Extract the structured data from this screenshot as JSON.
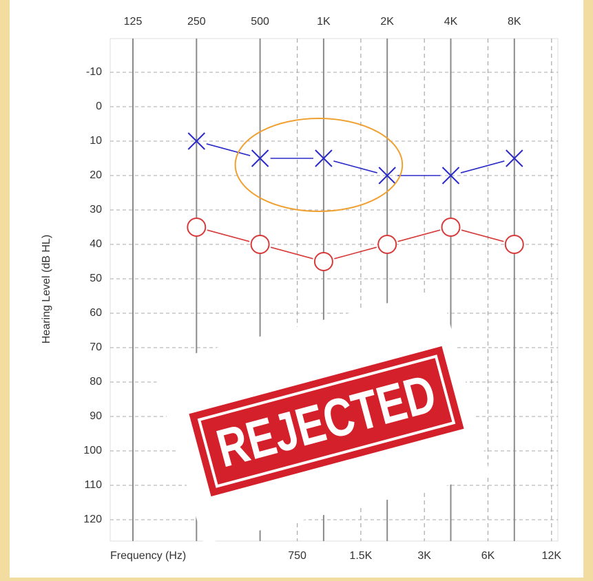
{
  "chart_data": {
    "type": "line",
    "title": "",
    "xlabel": "Frequency (Hz)",
    "ylabel": "Hearing Level (dB HL)",
    "x_scale": "log",
    "y_inverted": true,
    "ylim": [
      -20,
      120
    ],
    "y_ticks": [
      -10,
      0,
      10,
      20,
      30,
      40,
      50,
      60,
      70,
      80,
      90,
      100,
      110,
      120
    ],
    "top_ticks": [
      {
        "hz": 125,
        "label": "125"
      },
      {
        "hz": 250,
        "label": "250"
      },
      {
        "hz": 500,
        "label": "500"
      },
      {
        "hz": 1000,
        "label": "1K"
      },
      {
        "hz": 2000,
        "label": "2K"
      },
      {
        "hz": 4000,
        "label": "4K"
      },
      {
        "hz": 8000,
        "label": "8K"
      }
    ],
    "bottom_ticks": [
      {
        "hz": 750,
        "label": "750"
      },
      {
        "hz": 1500,
        "label": "1.5K"
      },
      {
        "hz": 3000,
        "label": "3K"
      },
      {
        "hz": 6000,
        "label": "6K"
      },
      {
        "hz": 12000,
        "label": "12K"
      }
    ],
    "major_lines_hz": [
      125,
      250,
      500,
      1000,
      2000,
      4000,
      8000
    ],
    "minor_lines_hz": [
      750,
      1500,
      3000,
      6000,
      12000
    ],
    "grid": true,
    "series": [
      {
        "marker": "x",
        "color": "#2a2ac8",
        "x": [
          250,
          500,
          1000,
          2000,
          4000,
          8000
        ],
        "y": [
          10,
          15,
          15,
          20,
          20,
          15
        ]
      },
      {
        "marker": "o",
        "color": "#d63a3a",
        "x": [
          250,
          500,
          1000,
          2000,
          4000,
          8000
        ],
        "y": [
          35,
          40,
          45,
          40,
          35,
          40
        ]
      }
    ],
    "annotations": {
      "highlight_ellipse": {
        "color": "#f0a030",
        "x_from": 500,
        "x_to": 2000,
        "y_from": 5,
        "y_to": 25
      },
      "stamp": {
        "text": "REJECTED",
        "color": "#d4202a"
      }
    }
  }
}
